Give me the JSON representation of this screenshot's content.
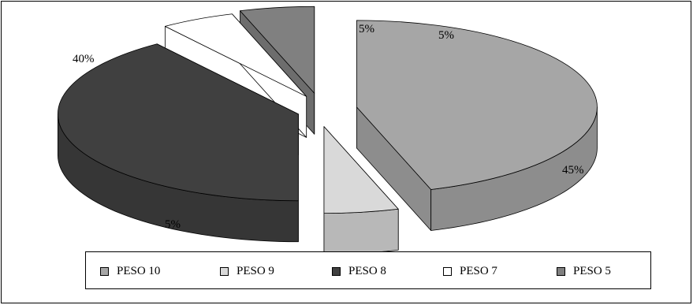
{
  "chart_data": {
    "type": "pie",
    "three_d": true,
    "exploded": true,
    "title": "",
    "slices": [
      {
        "label": "PESO 10",
        "value": 45,
        "color": "#a6a6a6",
        "data_label": "45%"
      },
      {
        "label": "PESO 9",
        "value": 5,
        "color": "#d9d9d9",
        "data_label": "5%"
      },
      {
        "label": "PESO 8",
        "value": 40,
        "color": "#404040",
        "data_label": "40%"
      },
      {
        "label": "PESO 7",
        "value": 5,
        "color": "#ffffff",
        "data_label": "5%"
      },
      {
        "label": "PESO 5",
        "value": 5,
        "color": "#808080",
        "data_label": "5%"
      }
    ],
    "legend_position": "bottom",
    "legend": [
      "PESO 10",
      "PESO 9",
      "PESO 8",
      "PESO 7",
      "PESO 5"
    ]
  }
}
